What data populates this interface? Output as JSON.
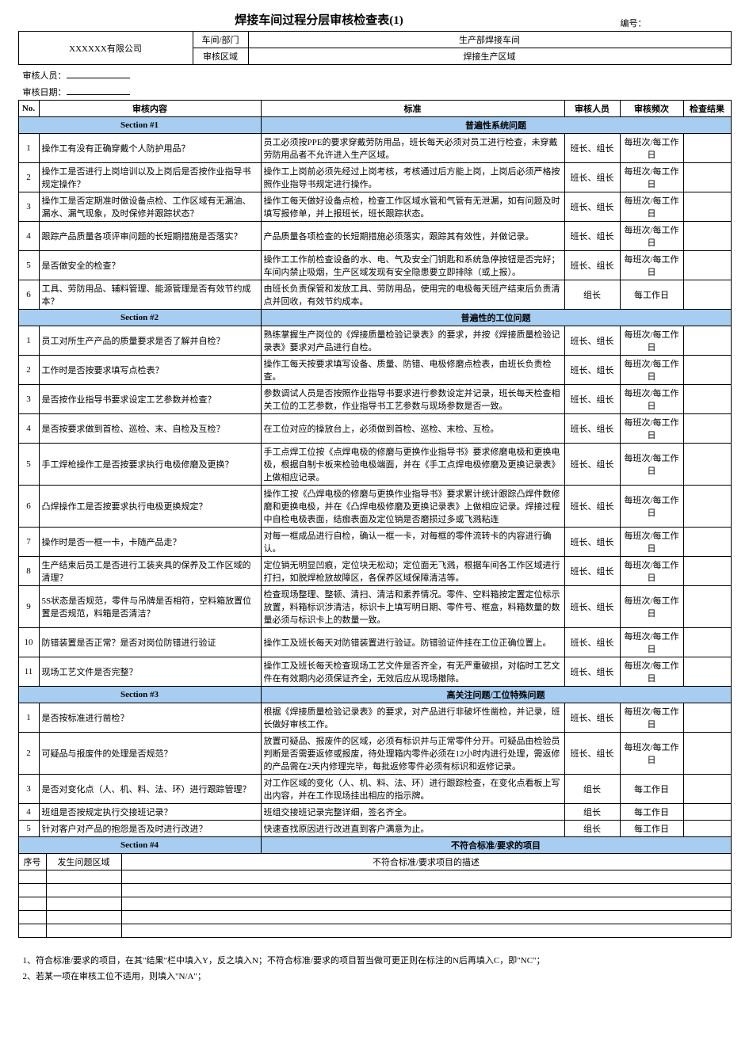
{
  "doc": {
    "title": "焊接车间过程分层审核检查表(1)",
    "number_label": "编号：",
    "company": "XXXXXX有限公司",
    "dept_label": "车间/部门",
    "dept_value": "生产部焊接车间",
    "area_label": "审核区域",
    "area_value": "焊接生产区域",
    "auditor_label": "审核人员：",
    "date_label": "审核日期："
  },
  "cols": {
    "no": "No.",
    "content": "审核内容",
    "standard": "标准",
    "person": "审核人员",
    "freq": "审核频次",
    "result": "检查结果"
  },
  "section1": {
    "label": "Section #1",
    "title": "普遍性系统问题"
  },
  "section2": {
    "label": "Section #2",
    "title": "普遍性的工位问题"
  },
  "section3": {
    "label": "Section #3",
    "title": "高关注问题/工位特殊问题"
  },
  "section4": {
    "label": "Section #4",
    "title": "不符合标准/要求的项目"
  },
  "s1": [
    {
      "no": "1",
      "content": "操作工有没有正确穿戴个人防护用品？",
      "standard": "员工必须按PPE的要求穿戴劳防用品，班长每天必须对员工进行检查，未穿戴劳防用品者不允许进入生产区域。",
      "person": "班长、组长",
      "freq": "每班次/每工作日",
      "result": ""
    },
    {
      "no": "2",
      "content": "操作工是否进行上岗培训以及上岗后是否按作业指导书规定操作？",
      "standard": "操作工上岗前必须先经过上岗考核，考核通过后方能上岗，上岗后必须严格按照作业指导书规定进行操作。",
      "person": "班长、组长",
      "freq": "每班次/每工作日",
      "result": ""
    },
    {
      "no": "3",
      "content": "操作工是否定期准时做设备点检、工作区域有无漏油、漏水、漏气现象，及时保修并跟踪状态？",
      "standard": "操作工每天做好设备点检，检查工作区域水管和气管有无泄漏，如有问题及时填写报修单，并上报班长，班长跟踪状态。",
      "person": "班长、组长",
      "freq": "每班次/每工作日",
      "result": ""
    },
    {
      "no": "4",
      "content": "跟踪产品质量各项评审问题的长短期措施是否落实？",
      "standard": "产品质量各项检查的长短期措施必须落实，跟踪其有效性，并做记录。",
      "person": "班长、组长",
      "freq": "每班次/每工作日",
      "result": ""
    },
    {
      "no": "5",
      "content": "是否做安全的检查？",
      "standard": "操作工工作前检查设备的水、电、气及安全门钥匙和系统急停按钮是否完好；车间内禁止吸烟，生产区域发现有安全隐患要立即排除（或上报）。",
      "person": "班长、组长",
      "freq": "每班次/每工作日",
      "result": ""
    },
    {
      "no": "6",
      "content": "工具、劳防用品、辅料管理、能源管理是否有效节约成本？",
      "standard": "由班长负责保管和发放工具、劳防用品，使用完的电极每天班产结束后负责清点并回收，有效节约成本。",
      "person": "组长",
      "freq": "每工作日",
      "result": ""
    }
  ],
  "s2": [
    {
      "no": "1",
      "content": "员工对所生产产品的质量要求是否了解并自检？",
      "standard": "熟练掌握生产岗位的《焊接质量检验记录表》的要求，并按《焊接质量检验记录表》要求对产品进行自检。",
      "person": "班长、组长",
      "freq": "每班次/每工作日",
      "result": ""
    },
    {
      "no": "2",
      "content": "工作时是否按要求填写点检表？",
      "standard": "操作工每天按要求填写设备、质量、防错、电极修磨点检表，由班长负责检查。",
      "person": "班长、组长",
      "freq": "每班次/每工作日",
      "result": ""
    },
    {
      "no": "3",
      "content": "是否按作业指导书要求设定工艺参数并检查？",
      "standard": "参数调试人员是否按照作业指导书要求进行参数设定并记录，班长每天检查相关工位的工艺参数，作业指导书工艺参数与现场参数是否一致。",
      "person": "班长、组长",
      "freq": "每班次/每工作日",
      "result": ""
    },
    {
      "no": "4",
      "content": "是否按要求做到首检、巡检、末、自检及互检？",
      "standard": "在工位对应的操放台上，必须做到首检、巡检、末检、互检。",
      "person": "班长、组长",
      "freq": "每班次/每工作日",
      "result": ""
    },
    {
      "no": "5",
      "content": "手工焊枪操作工是否按要求执行电极修磨及更换？",
      "standard": "手工点焊工位按《点焊电极的修磨与更换作业指导书》要求修磨电极和更换电极，根据自制卡板来检验电极端面，并在《手工点焊电极修磨及更换记录表》上做相应记录。",
      "person": "班长、组长",
      "freq": "每班次/每工作日",
      "result": ""
    },
    {
      "no": "6",
      "content": "凸焊操作工是否按要求执行电极更换规定？",
      "standard": "操作工按《凸焊电极的修磨与更换作业指导书》要求累计统计跟踪凸焊件数修磨和更换电极，并在《凸焊电极修磨及更换记录表》上做相应记录。焊接过程中自检电极表面，结痂表面及定位销是否磨损过多或飞溅粘连",
      "person": "班长、组长",
      "freq": "每班次/每工作日",
      "result": ""
    },
    {
      "no": "7",
      "content": "操作时是否一框一卡，卡随产品走？",
      "standard": "对每一框成品进行自检，确认一框一卡，对每框的零件流转卡的内容进行确认。",
      "person": "班长、组长",
      "freq": "每班次/每工作日",
      "result": ""
    },
    {
      "no": "8",
      "content": "生产结束后员工是否进行工装夹具的保养及工作区域的清理？",
      "standard": "定位销无明显凹痕，定位块无松动；定位面无飞溅，根据车间各工作区域进行打扫，如脱焊枪放故障区，各保养区域保障清洁等。",
      "person": "班长、组长",
      "freq": "每班次/每工作日",
      "result": ""
    },
    {
      "no": "9",
      "content": "5S状态是否规范，零件与吊牌是否相符，空料箱放置位置是否规范，料箱是否清洁？",
      "standard": "检查现场整理、整顿、清扫、清洁和素养情况。零件、空料箱按定置定位标示放置，料箱标识涉清洁，标识卡上填写明日期、零件号、框盒，料箱数量的数量必须与标识卡上的数量一致。",
      "person": "班长、组长",
      "freq": "每班次/每工作日",
      "result": ""
    },
    {
      "no": "10",
      "content": "防错装置是否正常？是否对岗位防错进行验证",
      "standard": "操作工及班长每天对防错装置进行验证。防错验证件挂在工位正确位置上。",
      "person": "班长、组长",
      "freq": "每班次/每工作日",
      "result": ""
    },
    {
      "no": "11",
      "content": "现场工艺文件是否完整？",
      "standard": "操作工及班长每天检查现场工艺文件是否齐全，有无严重破损，对临时工艺文件在有效期内必须保证齐全，无效后应从现场撤除。",
      "person": "班长、组长",
      "freq": "每班次/每工作日",
      "result": ""
    }
  ],
  "s3": [
    {
      "no": "1",
      "content": "是否按标准进行凿检？",
      "standard": "根据《焊接质量检验记录表》的要求，对产品进行非破坏性凿检，并记录，班长做好审核工作。",
      "person": "班长、组长",
      "freq": "每班次/每工作日",
      "result": ""
    },
    {
      "no": "2",
      "content": "可疑品与报废件的处理是否规范？",
      "standard": "放置可疑品、报废件的区域，必须有标识并与正常零件分开。可疑品由检验员判断是否需要返修或报废，待处理箱内零件必须在12小时内进行处理，需返修的产品需在2天内修理完毕，每批返修零件必须有标识和返修记录。",
      "person": "班长、组长",
      "freq": "每班次/每工作日",
      "result": ""
    },
    {
      "no": "3",
      "content": "是否对变化点（人、机、料、法、环）进行跟踪管理？",
      "standard": "对工作区域的变化（人、机、料、法、环）进行跟踪检查，在变化点看板上写出内容，并在工作现场挂出相应的指示牌。",
      "person": "组长",
      "freq": "每工作日",
      "result": ""
    },
    {
      "no": "4",
      "content": "班组是否按规定执行交接班记录？",
      "standard": "班组交接班记录完整详细，签名齐全。",
      "person": "组长",
      "freq": "每工作日",
      "result": ""
    },
    {
      "no": "5",
      "content": "针对客户对产品的抱怨是否及时进行改进？",
      "standard": "快速查找原因进行改进直到客户满意为止。",
      "person": "组长",
      "freq": "每工作日",
      "result": ""
    }
  ],
  "s4_header": {
    "no": "序号",
    "area": "发生问题区域",
    "desc": "不符合标准/要求项目的描述"
  },
  "s4_rows": 5,
  "notes": {
    "n1": "1、符合标准/要求的项目，在其\"结果\"栏中填入Y，反之填入N；不符合标准/要求的项目暂当做可更正则在标注的N后再填入C，即\"NC\"；",
    "n2": "2、若某一项在审核工位不适用，则填入\"N/A\"；"
  },
  "colors": {
    "section_bg": "#a7cdf0"
  }
}
